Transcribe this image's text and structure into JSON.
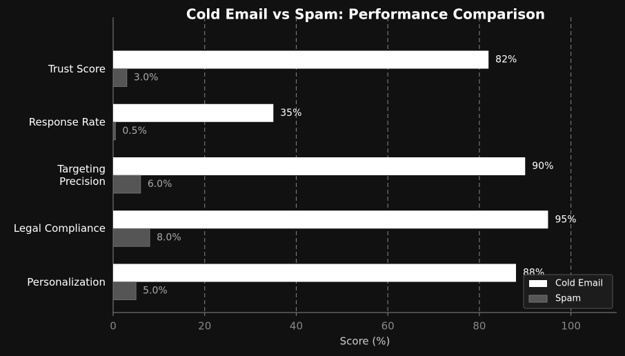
{
  "chart_data": {
    "type": "barh",
    "title": "Cold Email vs Spam: Performance Comparison",
    "xlabel": "Score (%)",
    "categories": [
      "Trust Score",
      "Response Rate",
      "Targeting\nPrecision",
      "Legal Compliance",
      "Personalization"
    ],
    "series": [
      {
        "name": "Cold Email",
        "color": "#ffffff",
        "values": [
          82,
          35,
          90,
          95,
          88
        ],
        "value_labels": [
          "82%",
          "35%",
          "90%",
          "95%",
          "88%"
        ]
      },
      {
        "name": "Spam",
        "color": "#555555",
        "values": [
          3,
          0.5,
          6,
          8,
          5
        ],
        "value_labels": [
          "3.0%",
          "0.5%",
          "6.0%",
          "8.0%",
          "5.0%"
        ]
      }
    ],
    "xlim": [
      0,
      110
    ],
    "xticks": [
      0,
      20,
      40,
      60,
      80,
      100
    ],
    "grid": true,
    "legend": "lower right"
  }
}
